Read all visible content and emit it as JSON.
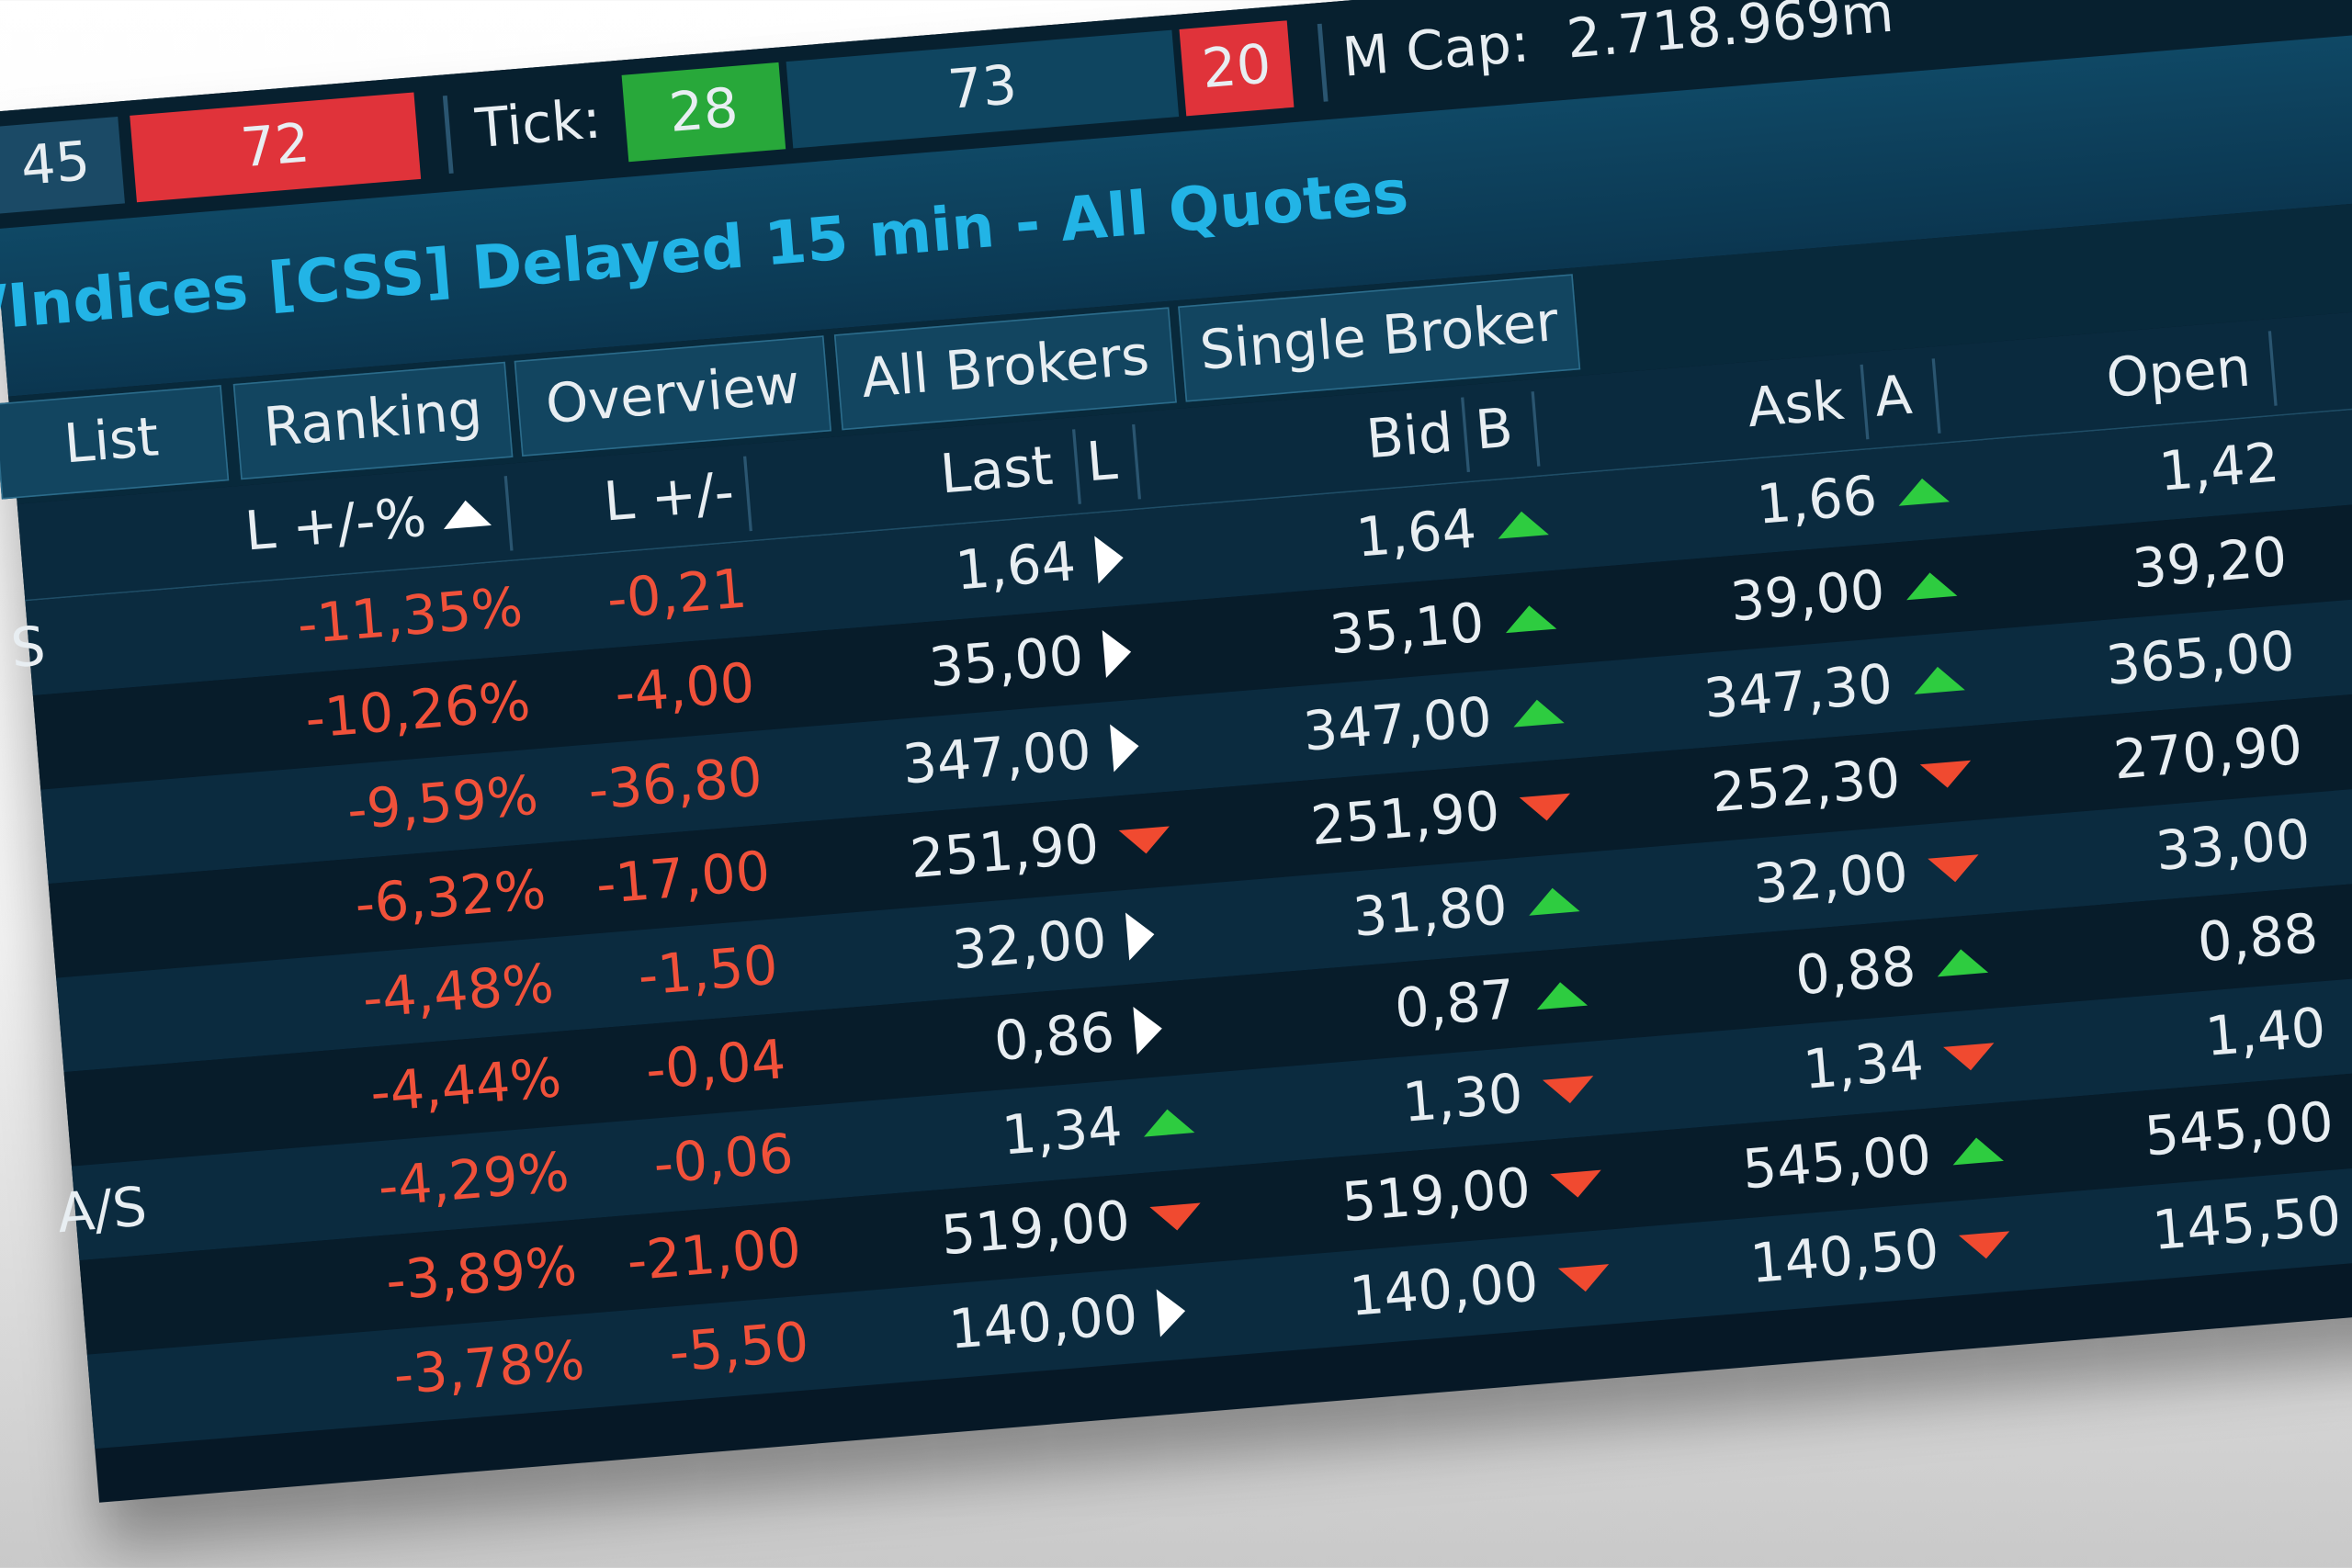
{
  "stats_bar": {
    "left_value": "45",
    "down_count": "72",
    "tick_label": "Tick:",
    "tick_up": "28",
    "tick_flat": "73",
    "tick_down": "20",
    "mcap_label": "M Cap:",
    "mcap_value": "2.718.969m"
  },
  "title": "/Indices [CSS] Delayed 15 min - All Quotes",
  "tabs": [
    "List",
    "Ranking",
    "Overview",
    "All Brokers",
    "Single Broker"
  ],
  "columns": [
    "L +/-%",
    "L +/-",
    "Last",
    "L",
    "Bid",
    "B",
    "Ask",
    "A",
    "Open"
  ],
  "rows": [
    [
      "S",
      "-11,35%",
      "-0,21",
      "1,64",
      "1,64",
      "1,66",
      "1,42"
    ],
    [
      null,
      "-10,26%",
      "-4,00",
      "35,00",
      "35,10",
      "39,00",
      "39,20"
    ],
    [
      null,
      "-9,59%",
      "-36,80",
      "347,00",
      "347,00",
      "347,30",
      "365,00"
    ],
    [
      null,
      "-6,32%",
      "-17,00",
      "251,90",
      "251,90",
      "252,30",
      "270,90"
    ],
    [
      null,
      "-4,48%",
      "-1,50",
      "32,00",
      "31,80",
      "32,00",
      "33,00"
    ],
    [
      null,
      "-4,44%",
      "-0,04",
      "0,86",
      "0,87",
      "0,88",
      "0,88"
    ],
    [
      "A/S",
      "-4,29%",
      "-0,06",
      "1,34",
      "1,30",
      "1,34",
      "1,40"
    ],
    [
      null,
      "-3,89%",
      "-21,00",
      "519,00",
      "519,00",
      "545,00",
      "545,00"
    ],
    [
      null,
      "-3,78%",
      "-5,50",
      "140,00",
      "140,00",
      "140,50",
      "145,50"
    ]
  ]
}
